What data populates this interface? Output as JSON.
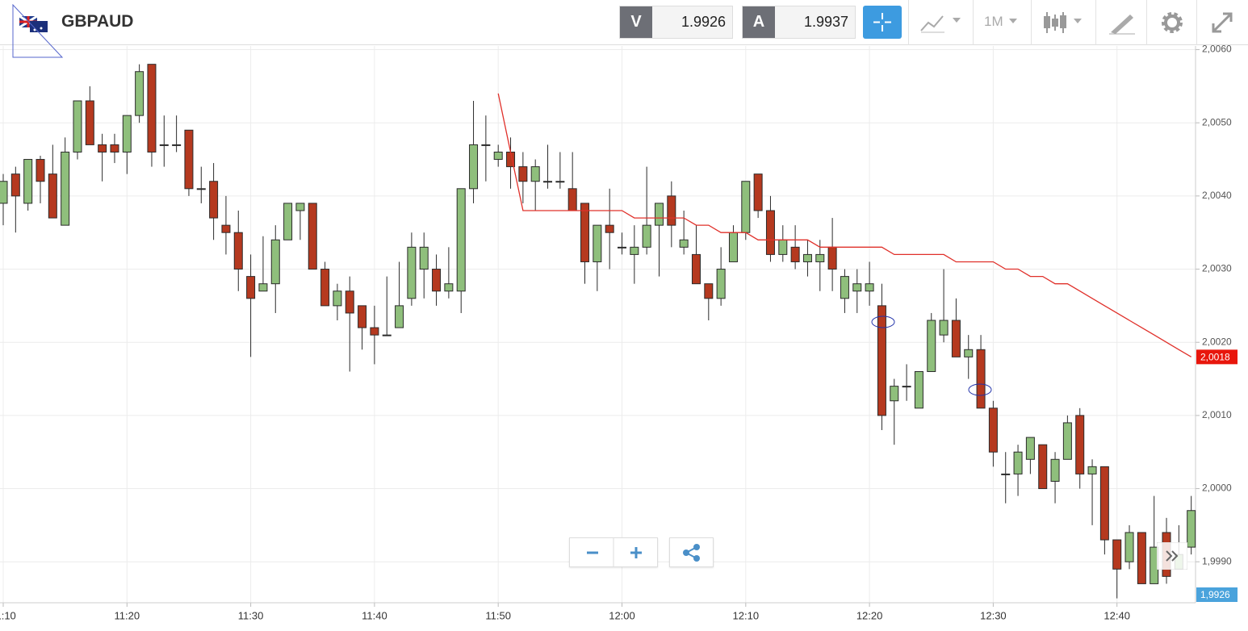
{
  "header": {
    "symbol": "GBPAUD",
    "sell_label": "V",
    "sell_price": 1.9926,
    "buy_label": "A",
    "buy_price": 1.9937,
    "timeframe": "1M"
  },
  "chart_data": {
    "type": "candlestick",
    "categories": [
      "11:10",
      "11:11",
      "11:12",
      "11:13",
      "11:14",
      "11:15",
      "11:16",
      "11:17",
      "11:18",
      "11:19",
      "11:20",
      "11:21",
      "11:22",
      "11:23",
      "11:24",
      "11:25",
      "11:26",
      "11:27",
      "11:28",
      "11:29",
      "11:30",
      "11:31",
      "11:32",
      "11:33",
      "11:34",
      "11:35",
      "11:36",
      "11:37",
      "11:38",
      "11:39",
      "11:40",
      "11:41",
      "11:42",
      "11:43",
      "11:44",
      "11:45",
      "11:46",
      "11:47",
      "11:48",
      "11:49",
      "11:50",
      "11:51",
      "11:52",
      "11:53",
      "11:54",
      "11:55",
      "11:56",
      "11:57",
      "11:58",
      "11:59",
      "12:00",
      "12:01",
      "12:02",
      "12:03",
      "12:04",
      "12:05",
      "12:06",
      "12:07",
      "12:08",
      "12:09",
      "12:10",
      "12:11",
      "12:12",
      "12:13",
      "12:14",
      "12:15",
      "12:16",
      "12:17",
      "12:18",
      "12:19",
      "12:20",
      "12:21",
      "12:22",
      "12:23",
      "12:24",
      "12:25",
      "12:26",
      "12:27",
      "12:28",
      "12:29",
      "12:30",
      "12:31",
      "12:32",
      "12:33",
      "12:34",
      "12:35",
      "12:36",
      "12:37",
      "12:38",
      "12:39",
      "12:40",
      "12:41",
      "12:42",
      "12:43",
      "12:44",
      "12:45",
      "12:46"
    ],
    "open": [
      2.0039,
      2.0043,
      2.0039,
      2.0045,
      2.0043,
      2.0036,
      2.0046,
      2.0053,
      2.0047,
      2.0047,
      2.0046,
      2.0051,
      2.0058,
      2.0047,
      2.0047,
      2.0049,
      2.0041,
      2.0042,
      2.0036,
      2.0035,
      2.0029,
      2.0027,
      2.0028,
      2.0034,
      2.0038,
      2.0039,
      2.003,
      2.0025,
      2.0027,
      2.0025,
      2.0022,
      2.0021,
      2.0022,
      2.0026,
      2.003,
      2.003,
      2.0027,
      2.0027,
      2.0041,
      2.0047,
      2.0045,
      2.0046,
      2.0044,
      2.0042,
      2.0042,
      2.0042,
      2.0041,
      2.0039,
      2.0031,
      2.0036,
      2.0033,
      2.0032,
      2.0033,
      2.0036,
      2.004,
      2.0033,
      2.0032,
      2.0028,
      2.0026,
      2.0031,
      2.0035,
      2.0043,
      2.0038,
      2.0032,
      2.0033,
      2.0031,
      2.0031,
      2.0033,
      2.0026,
      2.0027,
      2.0027,
      2.0025,
      2.0012,
      2.0014,
      2.0011,
      2.0016,
      2.0021,
      2.0023,
      2.0018,
      2.0019,
      2.0011,
      2.0002,
      2.0002,
      2.0004,
      2.0006,
      2.0001,
      2.0004,
      2.001,
      2.0002,
      2.0003,
      1.9993,
      1.999,
      1.9994,
      1.9987,
      1.9994,
      1.9989,
      1.9992
    ],
    "high": [
      2.0043,
      2.0044,
      2.0045,
      2.00455,
      2.0047,
      2.0048,
      2.0053,
      2.0055,
      2.00485,
      2.00485,
      2.0051,
      2.0058,
      2.0058,
      2.0051,
      2.0051,
      2.0049,
      2.0044,
      2.00445,
      2.004,
      2.0038,
      2.0032,
      2.00345,
      2.0036,
      2.0039,
      2.0039,
      2.0039,
      2.0031,
      2.0028,
      2.0029,
      2.0025,
      2.0025,
      2.0029,
      2.0031,
      2.0035,
      2.0035,
      2.0032,
      2.0033,
      2.0041,
      2.0053,
      2.0051,
      2.0047,
      2.0048,
      2.0046,
      2.0045,
      2.0047,
      2.0046,
      2.0046,
      2.0039,
      2.0036,
      2.0041,
      2.0035,
      2.0036,
      2.0044,
      2.0039,
      2.0042,
      2.0038,
      2.0036,
      2.0028,
      2.0033,
      2.0036,
      2.0042,
      2.0043,
      2.004,
      2.0036,
      2.0036,
      2.0034,
      2.0034,
      2.0037,
      2.003,
      2.003,
      2.0031,
      2.0028,
      2.0015,
      2.0017,
      2.0016,
      2.0024,
      2.003,
      2.0026,
      2.0021,
      2.0021,
      2.0012,
      2.0005,
      2.0006,
      2.0007,
      2.0006,
      2.0005,
      2.001,
      2.0011,
      2.0004,
      2.0003,
      1.9993,
      1.9995,
      1.9994,
      1.9999,
      1.9996,
      1.9995,
      1.9999
    ],
    "low": [
      2.0036,
      2.0035,
      2.0038,
      2.0039,
      2.0037,
      2.0036,
      2.0045,
      2.0047,
      2.0042,
      2.00445,
      2.0043,
      2.005,
      2.0044,
      2.0044,
      2.0046,
      2.004,
      2.0039,
      2.0034,
      2.0032,
      2.0027,
      2.0018,
      2.0027,
      2.0024,
      2.0034,
      2.0034,
      2.003,
      2.0025,
      2.0023,
      2.0016,
      2.0019,
      2.0017,
      2.0021,
      2.0022,
      2.0025,
      2.0026,
      2.0025,
      2.0026,
      2.0024,
      2.0039,
      2.0042,
      2.0044,
      2.0041,
      2.0039,
      2.0038,
      2.0041,
      2.0041,
      2.0038,
      2.0028,
      2.0027,
      2.003,
      2.0032,
      2.0028,
      2.0032,
      2.0029,
      2.0033,
      2.0032,
      2.0028,
      2.0023,
      2.0025,
      2.0031,
      2.0034,
      2.0037,
      2.0031,
      2.0031,
      2.003,
      2.0029,
      2.0027,
      2.0027,
      2.0024,
      2.0024,
      2.0025,
      2.0008,
      2.0006,
      2.0012,
      2.0011,
      2.0016,
      2.002,
      2.0018,
      2.0015,
      2.0011,
      2.0003,
      1.9998,
      1.9999,
      2.0002,
      2.0,
      1.9998,
      2.0004,
      2.0,
      1.9995,
      1.9991,
      1.9985,
      1.9989,
      1.9987,
      1.9987,
      1.9987,
      1.9989,
      1.9991
    ],
    "close": [
      2.0042,
      2.004,
      2.0045,
      2.0042,
      2.0037,
      2.0046,
      2.0053,
      2.0047,
      2.0046,
      2.0046,
      2.0051,
      2.0057,
      2.0046,
      2.0047,
      2.0047,
      2.0041,
      2.0041,
      2.0037,
      2.0035,
      2.003,
      2.0026,
      2.0028,
      2.0034,
      2.0039,
      2.0039,
      2.003,
      2.0025,
      2.0027,
      2.0024,
      2.0022,
      2.0021,
      2.0021,
      2.0025,
      2.0033,
      2.0033,
      2.0027,
      2.0028,
      2.0041,
      2.0047,
      2.0047,
      2.0046,
      2.0044,
      2.0042,
      2.0044,
      2.0042,
      2.0042,
      2.0038,
      2.0031,
      2.0036,
      2.0035,
      2.0033,
      2.0033,
      2.0036,
      2.0039,
      2.0036,
      2.0034,
      2.0028,
      2.0026,
      2.003,
      2.0035,
      2.0042,
      2.0038,
      2.0032,
      2.0034,
      2.0031,
      2.0032,
      2.0032,
      2.003,
      2.0029,
      2.0028,
      2.0028,
      2.001,
      2.0014,
      2.0014,
      2.0016,
      2.0023,
      2.0023,
      2.0018,
      2.0019,
      2.0011,
      2.0005,
      2.0002,
      2.0005,
      2.0007,
      2.0,
      2.0004,
      2.0009,
      2.0002,
      2.0003,
      1.9993,
      1.9989,
      1.9994,
      1.9987,
      1.9992,
      1.9988,
      1.9991,
      1.9997
    ],
    "up_color": "#8fbf7c",
    "down_color": "#b5391f",
    "outline_color": "#2b2b2b",
    "moving_average": {
      "color": "#e0302a",
      "values": [
        null,
        null,
        null,
        null,
        null,
        null,
        null,
        null,
        null,
        null,
        null,
        null,
        null,
        null,
        null,
        null,
        null,
        null,
        null,
        null,
        null,
        null,
        null,
        null,
        null,
        null,
        null,
        null,
        null,
        null,
        null,
        null,
        null,
        null,
        null,
        null,
        null,
        null,
        null,
        null,
        2.0054,
        2.0046,
        2.0038,
        2.0038,
        2.0038,
        2.0038,
        2.0038,
        2.0038,
        2.0038,
        2.0038,
        2.0038,
        2.0037,
        2.0037,
        2.0037,
        2.0037,
        2.0037,
        2.0036,
        2.0036,
        2.0035,
        2.0035,
        2.0035,
        2.0034,
        2.0034,
        2.0034,
        2.0034,
        2.0034,
        2.0033,
        2.0033,
        2.0033,
        2.0033,
        2.0033,
        2.0033,
        2.0032,
        2.0032,
        2.0032,
        2.0032,
        2.0032,
        2.0031,
        2.0031,
        2.0031,
        2.0031,
        2.003,
        2.003,
        2.0029,
        2.0029,
        2.0028,
        2.0028,
        2.0027,
        2.0026,
        2.0025,
        2.0024,
        2.0023,
        2.0022,
        2.0021,
        2.002,
        2.0019,
        2.0018
      ]
    },
    "price_tags": [
      {
        "value": 2.0018,
        "label": "2,0018",
        "color": "#e8160c"
      },
      {
        "value": 1.9926,
        "label": "1,9926",
        "color": "#4aa3dc"
      }
    ],
    "ylim": [
      1.99844,
      2.00605
    ],
    "yticks": [
      {
        "value": 2.006,
        "label": "2,0060"
      },
      {
        "value": 2.005,
        "label": "2,0050"
      },
      {
        "value": 2.004,
        "label": "2,0040"
      },
      {
        "value": 2.003,
        "label": "2,0030"
      },
      {
        "value": 2.002,
        "label": "2,0020"
      },
      {
        "value": 2.001,
        "label": "2,0010"
      },
      {
        "value": 2.0,
        "label": "2,0000"
      },
      {
        "value": 1.999,
        "label": "1,9990"
      }
    ],
    "xticks": [
      "11:10",
      "11:20",
      "11:30",
      "11:40",
      "11:50",
      "12:00",
      "12:10",
      "12:20",
      "12:30",
      "12:40"
    ],
    "grid": true
  }
}
